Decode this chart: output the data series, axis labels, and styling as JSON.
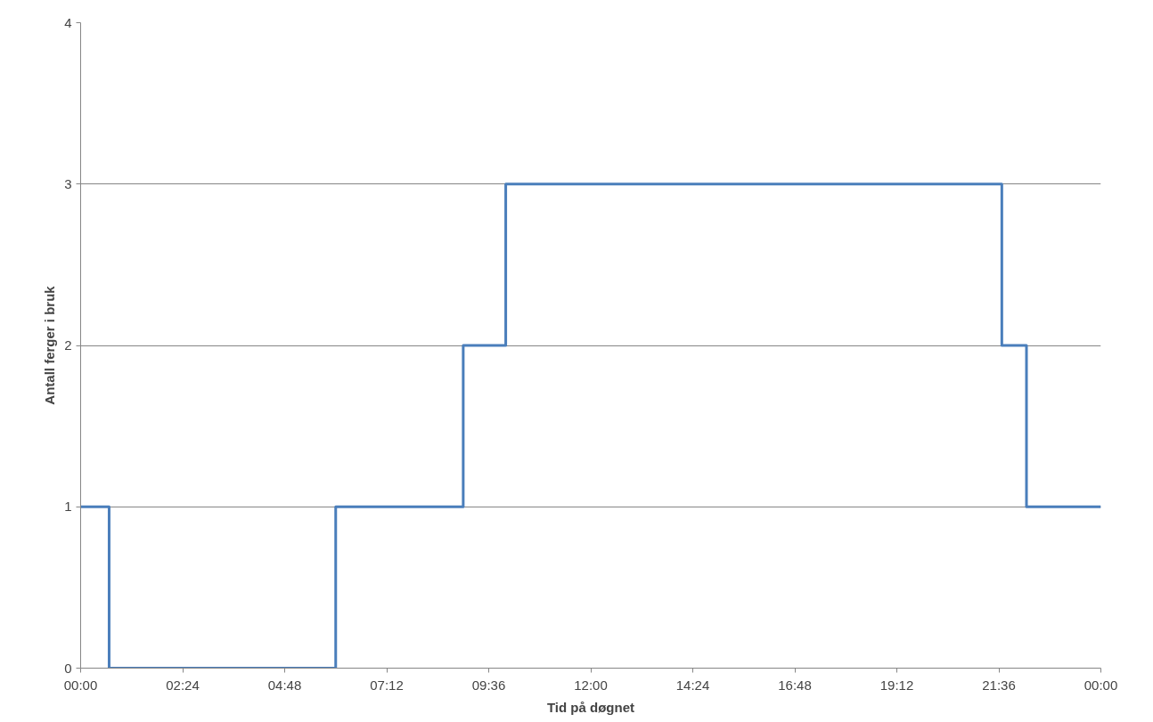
{
  "chart_data": {
    "type": "step",
    "xlabel": "Tid på døgnet",
    "ylabel": "Antall ferger i bruk",
    "x": [
      0,
      0.67,
      6,
      9,
      10,
      21.67,
      22.25,
      24
    ],
    "series": [
      {
        "color": "#4a7ebb",
        "values": [
          1,
          0,
          1,
          2,
          3,
          2,
          1,
          1
        ]
      }
    ],
    "xlim": [
      0,
      24
    ],
    "ylim": [
      0,
      4
    ],
    "xticks": [
      {
        "value": 0,
        "label": "00:00"
      },
      {
        "value": 2.4,
        "label": "02:24"
      },
      {
        "value": 4.8,
        "label": "04:48"
      },
      {
        "value": 7.2,
        "label": "07:12"
      },
      {
        "value": 9.6,
        "label": "09:36"
      },
      {
        "value": 12,
        "label": "12:00"
      },
      {
        "value": 14.4,
        "label": "14:24"
      },
      {
        "value": 16.8,
        "label": "16:48"
      },
      {
        "value": 19.2,
        "label": "19:12"
      },
      {
        "value": 21.6,
        "label": "21:36"
      },
      {
        "value": 24,
        "label": "00:00"
      }
    ],
    "yticks": [
      0,
      1,
      2,
      3,
      4
    ],
    "grid": "y",
    "marker": "none",
    "line_style": "solid"
  }
}
